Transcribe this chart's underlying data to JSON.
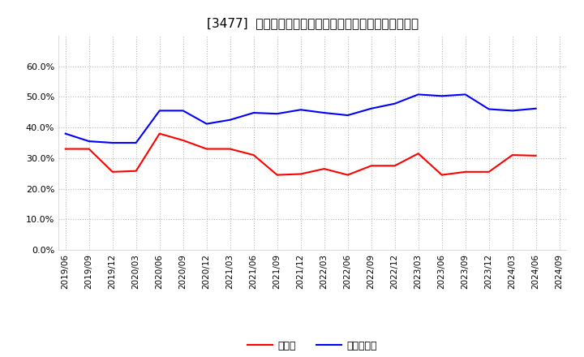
{
  "title": "[3477]  現預金、有利子負債の総資産に対する比率の推移",
  "x_labels": [
    "2019/06",
    "2019/09",
    "2019/12",
    "2020/03",
    "2020/06",
    "2020/09",
    "2020/12",
    "2021/03",
    "2021/06",
    "2021/09",
    "2021/12",
    "2022/03",
    "2022/06",
    "2022/09",
    "2022/12",
    "2023/03",
    "2023/06",
    "2023/09",
    "2023/12",
    "2024/03",
    "2024/06",
    "2024/09"
  ],
  "cash": [
    0.33,
    0.33,
    0.255,
    0.258,
    0.38,
    0.358,
    0.33,
    0.33,
    0.31,
    0.245,
    0.248,
    0.265,
    0.245,
    0.275,
    0.275,
    0.315,
    0.245,
    0.255,
    0.255,
    0.31,
    0.308,
    null
  ],
  "debt": [
    0.38,
    0.355,
    0.35,
    0.35,
    0.455,
    0.455,
    0.412,
    0.425,
    0.448,
    0.445,
    0.458,
    0.448,
    0.44,
    0.462,
    0.478,
    0.508,
    0.503,
    0.508,
    0.46,
    0.455,
    0.462,
    null
  ],
  "cash_color": "#ff0000",
  "debt_color": "#0000ff",
  "bg_color": "#ffffff",
  "plot_bg_color": "#ffffff",
  "grid_color": "#b0b0b0",
  "title_fontsize": 11,
  "legend_cash": "現預金",
  "legend_debt": "有利子負債",
  "ylim": [
    0.0,
    0.7
  ],
  "yticks": [
    0.0,
    0.1,
    0.2,
    0.3,
    0.4,
    0.5,
    0.6
  ]
}
